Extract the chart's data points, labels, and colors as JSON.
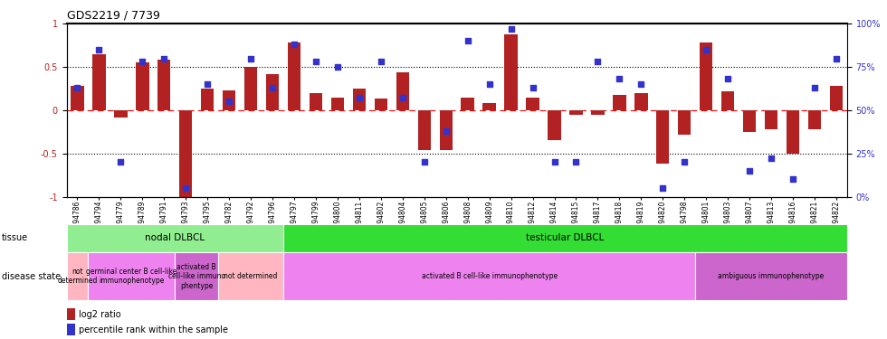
{
  "title": "GDS2219 / 7739",
  "samples": [
    "GSM94786",
    "GSM94794",
    "GSM94779",
    "GSM94789",
    "GSM94791",
    "GSM94793",
    "GSM94795",
    "GSM94782",
    "GSM94792",
    "GSM94796",
    "GSM94797",
    "GSM94799",
    "GSM94800",
    "GSM94811",
    "GSM94802",
    "GSM94804",
    "GSM94805",
    "GSM94806",
    "GSM94808",
    "GSM94809",
    "GSM94810",
    "GSM94812",
    "GSM94814",
    "GSM94815",
    "GSM94817",
    "GSM94818",
    "GSM94819",
    "GSM94820",
    "GSM94798",
    "GSM94801",
    "GSM94803",
    "GSM94807",
    "GSM94813",
    "GSM94816",
    "GSM94821",
    "GSM94822"
  ],
  "log2_ratio": [
    0.28,
    0.65,
    -0.08,
    0.55,
    0.58,
    -1.0,
    0.25,
    0.23,
    0.5,
    0.42,
    0.78,
    0.2,
    0.14,
    0.25,
    0.13,
    0.44,
    -0.46,
    -0.46,
    0.15,
    0.08,
    0.88,
    0.15,
    -0.35,
    -0.05,
    -0.05,
    0.18,
    0.2,
    -0.62,
    -0.28,
    0.78,
    0.22,
    -0.25,
    -0.22,
    -0.5,
    -0.22,
    0.28
  ],
  "percentile": [
    63,
    85,
    20,
    78,
    80,
    5,
    65,
    55,
    80,
    63,
    88,
    78,
    75,
    57,
    78,
    57,
    20,
    38,
    90,
    65,
    97,
    63,
    20,
    20,
    78,
    68,
    65,
    5,
    20,
    85,
    68,
    15,
    22,
    10,
    63,
    80
  ],
  "bar_color": "#b22222",
  "scatter_color": "#3333cc",
  "tissue_groups": [
    {
      "label": "nodal DLBCL",
      "start": 0,
      "end": 10,
      "color": "#90ee90"
    },
    {
      "label": "testicular DLBCL",
      "start": 10,
      "end": 36,
      "color": "#33dd33"
    }
  ],
  "disease_groups": [
    {
      "label": "not\ndetermined",
      "start": 0,
      "end": 1,
      "color": "#ffb6c1"
    },
    {
      "label": "germinal center B cell-like\nimmunophenotype",
      "start": 1,
      "end": 5,
      "color": "#ee82ee"
    },
    {
      "label": "activated B\ncell-like immuno\nphentype",
      "start": 5,
      "end": 7,
      "color": "#cc66cc"
    },
    {
      "label": "not determined",
      "start": 7,
      "end": 10,
      "color": "#ffb6c1"
    },
    {
      "label": "activated B cell-like immunophenotype",
      "start": 10,
      "end": 29,
      "color": "#ee82ee"
    },
    {
      "label": "ambiguous immunophenotype",
      "start": 29,
      "end": 36,
      "color": "#cc66cc"
    }
  ],
  "ylim_left": [
    -1.0,
    1.0
  ],
  "ylim_right": [
    0,
    100
  ],
  "yticks_left": [
    -1.0,
    -0.5,
    0.0,
    0.5,
    1.0
  ],
  "ytick_labels_left": [
    "-1",
    "-0.5",
    "0",
    "0.5",
    "1"
  ],
  "yticks_right": [
    0,
    25,
    50,
    75,
    100
  ],
  "ytick_labels_right": [
    "0%",
    "25%",
    "50%",
    "75%",
    "100%"
  ],
  "tissue_label": "tissue",
  "disease_label": "disease state",
  "legend_items": [
    {
      "label": "log2 ratio",
      "color": "#b22222",
      "marker": "s"
    },
    {
      "label": "percentile rank within the sample",
      "color": "#3333cc",
      "marker": "s"
    }
  ]
}
